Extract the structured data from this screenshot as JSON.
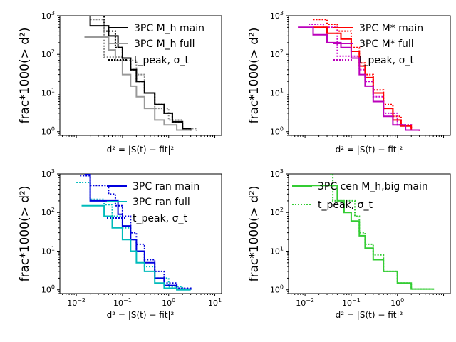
{
  "figure": {
    "ylabel": "frac*1000(> d²)",
    "xlabel": "d² = |S(t) − fit|²"
  },
  "chart_data": [
    {
      "type": "line",
      "panel": "top-left",
      "xscale": "log",
      "yscale": "log",
      "xlim": [
        0.0044,
        14
      ],
      "ylim": [
        0.8,
        1000
      ],
      "x_ticks_labeled": false,
      "y_ticks": [
        1,
        10,
        100,
        1000
      ],
      "ylabel": "frac*1000(> d²)",
      "xlabel": "d² = |S(t) − fit|²",
      "legend": [
        "3PC M_h main",
        "3PC M_h full",
        "t_peak, σ_t"
      ],
      "series": [
        {
          "name": "3PC M_h main (t_peak, σ_t)",
          "color": "#000000",
          "style": "dotted",
          "x": [
            0.02,
            0.04,
            0.07,
            0.1,
            0.15,
            0.2,
            0.3,
            0.5,
            0.8,
            1.2,
            2.0,
            3.0
          ],
          "y": [
            1000,
            400,
            150,
            80,
            40,
            20,
            10,
            5,
            3,
            1.8,
            1.2,
            1.05
          ]
        },
        {
          "name": "3PC M_h full (t_peak, σ_t)",
          "color": "#888888",
          "style": "dotted",
          "x": [
            0.02,
            0.04,
            0.08,
            0.1,
            0.2,
            0.3,
            0.5,
            1.0,
            2.0,
            4.0
          ],
          "y": [
            800,
            85,
            85,
            70,
            30,
            10,
            4,
            2,
            1.2,
            1.05
          ]
        },
        {
          "name": "3PC M_h main",
          "color": "#000000",
          "style": "solid",
          "x": [
            0.015,
            0.02,
            0.05,
            0.08,
            0.1,
            0.15,
            0.2,
            0.3,
            0.5,
            0.8,
            1.2,
            2.0,
            3.0
          ],
          "y": [
            1000,
            550,
            300,
            150,
            80,
            40,
            20,
            10,
            5,
            3,
            1.8,
            1.2,
            1.05
          ]
        },
        {
          "name": "3PC M_h full",
          "color": "#999999",
          "style": "solid",
          "x": [
            0.015,
            0.03,
            0.05,
            0.07,
            0.1,
            0.15,
            0.2,
            0.3,
            0.5,
            0.8,
            1.5,
            3.0
          ],
          "y": [
            280,
            280,
            130,
            70,
            30,
            15,
            8,
            4,
            2,
            1.5,
            1.1,
            1.05
          ]
        }
      ]
    },
    {
      "type": "line",
      "panel": "top-right",
      "xscale": "log",
      "yscale": "log",
      "xlim": [
        0.0044,
        14
      ],
      "ylim": [
        0.8,
        1000
      ],
      "x_ticks_labeled": false,
      "y_ticks": [
        1,
        10,
        100,
        1000
      ],
      "ylabel": "frac*1000(> d²)",
      "xlabel": "d² = |S(t) − fit|²",
      "legend": [
        "3PC M* main",
        "3PC M* full",
        "t_peak, σ_t"
      ],
      "series": [
        {
          "name": "3PC M* main (t_peak, σ_t)",
          "color": "#ff0000",
          "style": "dotted",
          "x": [
            0.015,
            0.03,
            0.05,
            0.1,
            0.15,
            0.2,
            0.3,
            0.5,
            0.8,
            1.2,
            2.0,
            3.0
          ],
          "y": [
            800,
            600,
            400,
            150,
            60,
            30,
            12,
            5,
            2.5,
            1.5,
            1.1,
            1.05
          ]
        },
        {
          "name": "3PC M* full (t_peak, σ_t)",
          "color": "#cc00cc",
          "style": "dotted",
          "x": [
            0.012,
            0.025,
            0.05,
            0.1,
            0.15,
            0.2,
            0.3,
            0.5,
            1.0,
            2.0
          ],
          "y": [
            600,
            500,
            90,
            90,
            40,
            20,
            8,
            3,
            1.5,
            1.1
          ]
        },
        {
          "name": "3PC M* main",
          "color": "#ff0000",
          "style": "solid",
          "x": [
            0.015,
            0.03,
            0.06,
            0.1,
            0.15,
            0.2,
            0.3,
            0.5,
            0.8,
            1.2,
            2.0,
            3.0
          ],
          "y": [
            500,
            350,
            250,
            120,
            50,
            25,
            10,
            4,
            2,
            1.4,
            1.1,
            1.05
          ]
        },
        {
          "name": "3PC M* full",
          "color": "#bb00bb",
          "style": "solid",
          "x": [
            0.007,
            0.015,
            0.03,
            0.06,
            0.1,
            0.15,
            0.2,
            0.3,
            0.5,
            0.8,
            1.5,
            3.0
          ],
          "y": [
            500,
            320,
            200,
            150,
            80,
            30,
            15,
            6,
            2.5,
            1.5,
            1.1,
            1.05
          ]
        }
      ]
    },
    {
      "type": "line",
      "panel": "bottom-left",
      "xscale": "log",
      "yscale": "log",
      "xlim": [
        0.0044,
        14
      ],
      "ylim": [
        0.8,
        1000
      ],
      "x_ticks": [
        0.01,
        0.1,
        1,
        10
      ],
      "y_ticks": [
        1,
        10,
        100,
        1000
      ],
      "ylabel": "frac*1000(> d²)",
      "xlabel": "d² = |S(t) − fit|²",
      "legend": [
        "3PC ran main",
        "3PC ran full",
        "t_peak, σ_t"
      ],
      "series": [
        {
          "name": "3PC ran main (t_peak, σ_t)",
          "color": "#0000dd",
          "style": "dotted",
          "x": [
            0.012,
            0.02,
            0.05,
            0.07,
            0.1,
            0.15,
            0.2,
            0.3,
            0.5,
            0.8,
            1.5,
            3.0
          ],
          "y": [
            900,
            500,
            300,
            150,
            80,
            30,
            15,
            6,
            3,
            1.5,
            1.1,
            1.05
          ]
        },
        {
          "name": "3PC ran full (t_peak, σ_t)",
          "color": "#00bbbb",
          "style": "dotted",
          "x": [
            0.01,
            0.02,
            0.04,
            0.06,
            0.1,
            0.15,
            0.2,
            0.3,
            0.5,
            1.0,
            2.0
          ],
          "y": [
            600,
            220,
            160,
            80,
            40,
            20,
            10,
            4,
            2,
            1.2,
            1.05
          ]
        },
        {
          "name": "3PC ran main",
          "color": "#0000dd",
          "style": "solid",
          "x": [
            0.015,
            0.02,
            0.05,
            0.08,
            0.1,
            0.15,
            0.2,
            0.3,
            0.5,
            0.8,
            1.5,
            3.0
          ],
          "y": [
            1000,
            200,
            200,
            90,
            45,
            20,
            10,
            5,
            2,
            1.3,
            1.05,
            1.0
          ]
        },
        {
          "name": "3PC ran full",
          "color": "#00bbbb",
          "style": "solid",
          "x": [
            0.013,
            0.02,
            0.04,
            0.06,
            0.1,
            0.15,
            0.2,
            0.3,
            0.5,
            0.8,
            1.5,
            3.0
          ],
          "y": [
            150,
            150,
            80,
            40,
            20,
            10,
            5,
            3,
            1.5,
            1.1,
            1.0,
            1.0
          ]
        }
      ]
    },
    {
      "type": "line",
      "panel": "bottom-right",
      "xscale": "log",
      "yscale": "log",
      "xlim": [
        0.0044,
        14
      ],
      "ylim": [
        0.8,
        1000
      ],
      "x_ticks": [
        0.01,
        0.1,
        1
      ],
      "y_ticks": [
        1,
        10,
        100,
        1000
      ],
      "ylabel": "frac*1000(> d²)",
      "xlabel": "d² = |S(t) − fit|²",
      "legend": [
        "3PC cen M_h,big main",
        "t_peak, σ_t"
      ],
      "series": [
        {
          "name": "3PC cen M_h,big main (t_peak, σ_t)",
          "color": "#33cc33",
          "style": "dotted",
          "x": [
            0.035,
            0.04,
            0.07,
            0.12,
            0.15,
            0.2,
            0.3,
            0.5,
            1.0,
            2.0,
            5.0
          ],
          "y": [
            1000,
            200,
            200,
            80,
            30,
            15,
            8,
            3,
            1.5,
            1.05,
            1.0
          ]
        },
        {
          "name": "3PC cen M_h,big main",
          "color": "#33cc33",
          "style": "solid",
          "x": [
            0.006,
            0.02,
            0.05,
            0.07,
            0.1,
            0.15,
            0.2,
            0.3,
            0.5,
            1.0,
            2.0,
            6.0
          ],
          "y": [
            500,
            500,
            200,
            100,
            60,
            25,
            12,
            6,
            3,
            1.5,
            1.05,
            1.0
          ]
        }
      ]
    }
  ]
}
